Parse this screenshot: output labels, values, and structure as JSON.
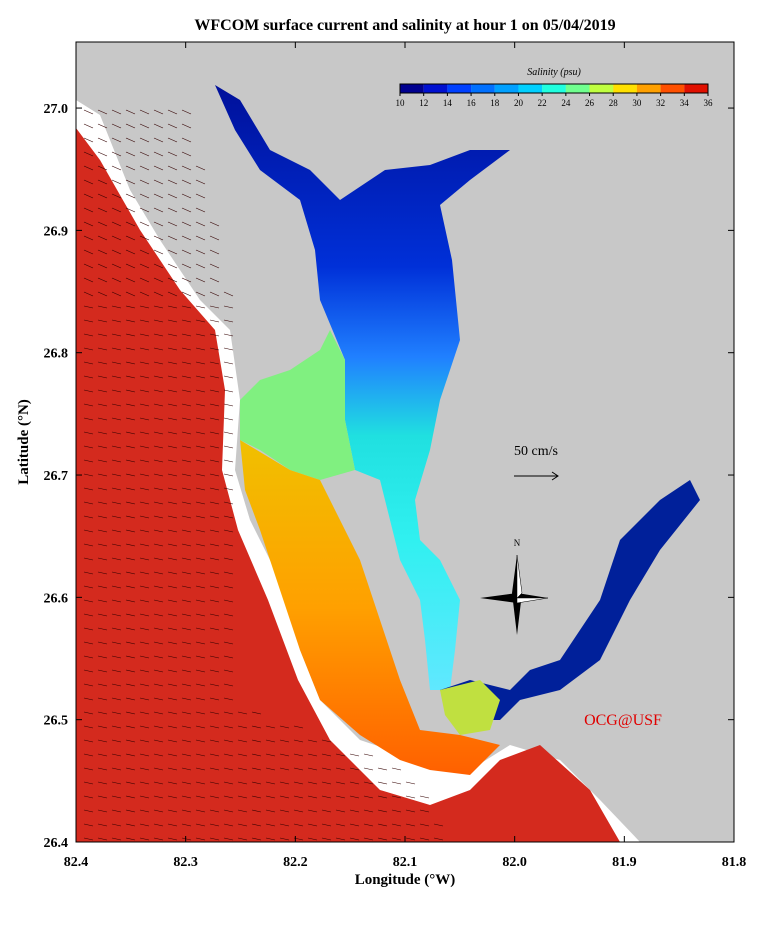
{
  "title": "WFCOM surface current and salinity at hour 1 on 05/04/2019",
  "x_axis": {
    "label": "Longitude (°W)",
    "range": [
      82.4,
      81.8
    ],
    "ticks": [
      {
        "value": 82.4,
        "label": "82.4"
      },
      {
        "value": 82.3,
        "label": "82.3"
      },
      {
        "value": 82.2,
        "label": "82.2"
      },
      {
        "value": 82.1,
        "label": "82.1"
      },
      {
        "value": 82.0,
        "label": "82.0"
      },
      {
        "value": 81.9,
        "label": "81.9"
      },
      {
        "value": 81.8,
        "label": "81.8"
      }
    ]
  },
  "y_axis": {
    "label": "Latitude (°N)",
    "range": [
      26.4,
      27.054
    ],
    "ticks": [
      {
        "value": 26.4,
        "label": "26.4"
      },
      26.5,
      26.6,
      26.7,
      26.8,
      26.9,
      {
        "value": 27.0,
        "label": "27.0"
      }
    ]
  },
  "colorbar": {
    "label": "Salinity (psu)",
    "ticks": [
      10,
      12,
      14,
      16,
      18,
      20,
      22,
      24,
      26,
      28,
      30,
      32,
      34,
      36
    ],
    "colors": [
      "#00008f",
      "#0010d0",
      "#0040ff",
      "#0070ff",
      "#00a0ff",
      "#00d0ff",
      "#20ffdf",
      "#70ff8f",
      "#c0ff40",
      "#ffe000",
      "#ffa000",
      "#ff5000",
      "#e01000"
    ]
  },
  "annotations": {
    "scale": "50 cm/s",
    "north": "N",
    "credit": "OCG@USF"
  }
}
